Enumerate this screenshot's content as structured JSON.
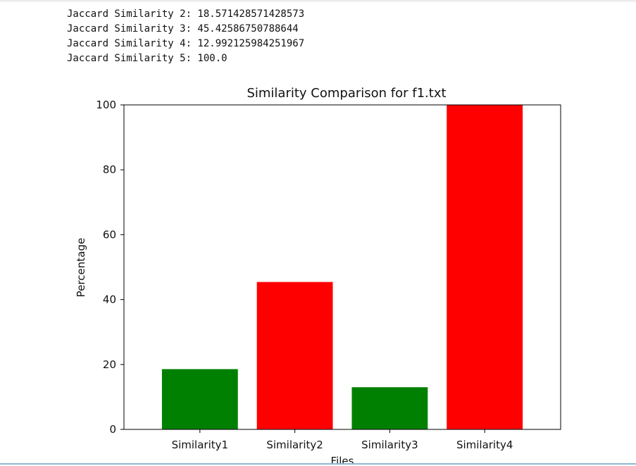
{
  "output": {
    "lines": [
      "Jaccard Similarity 2: 18.571428571428573",
      "Jaccard Similarity 3: 45.42586750788644",
      "Jaccard Similarity 4: 12.992125984251967",
      "Jaccard Similarity 5: 100.0"
    ]
  },
  "chart_data": {
    "type": "bar",
    "title": "Similarity Comparison for f1.txt",
    "xlabel": "Files",
    "ylabel": "Percentage",
    "categories": [
      "Similarity1",
      "Similarity2",
      "Similarity3",
      "Similarity4"
    ],
    "values": [
      18.571428571428573,
      45.42586750788644,
      12.992125984251967,
      100.0
    ],
    "bar_colors": [
      "#008000",
      "#ff0000",
      "#008000",
      "#ff0000"
    ],
    "ylim": [
      0,
      100
    ],
    "yticks": [
      0,
      20,
      40,
      60,
      80,
      100
    ],
    "grid": false,
    "legend": "none"
  }
}
